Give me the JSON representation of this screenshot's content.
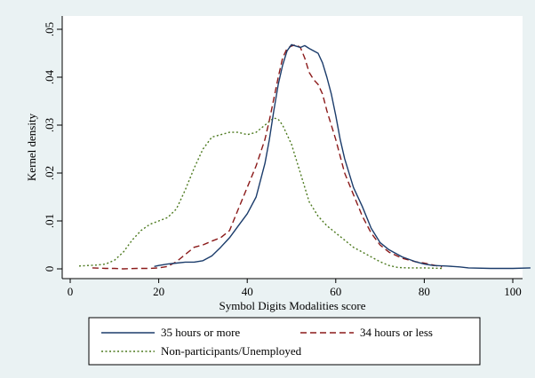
{
  "chart_data": {
    "type": "line",
    "title": "",
    "xlabel": "Symbol Digits Modalities score",
    "ylabel": "Kernel density",
    "xlim": [
      0,
      105
    ],
    "ylim": [
      -0.0015,
      0.0515
    ],
    "x_ticks": [
      0,
      20,
      40,
      60,
      80,
      100
    ],
    "x_tick_labels": [
      "0",
      "20",
      "40",
      "60",
      "80",
      "100"
    ],
    "y_ticks": [
      0,
      0.01,
      0.02,
      0.03,
      0.04,
      0.05
    ],
    "y_tick_labels": [
      "0",
      ".01",
      ".02",
      ".03",
      ".04",
      ".05"
    ],
    "grid": false,
    "legend_position": "bottom",
    "series": [
      {
        "name": "35 hours or more",
        "color": "#1b3c6b",
        "style": "solid",
        "points": [
          [
            19,
            0.0005
          ],
          [
            20,
            0.0007
          ],
          [
            22,
            0.001
          ],
          [
            24,
            0.0012
          ],
          [
            26,
            0.0014
          ],
          [
            28,
            0.0014
          ],
          [
            30,
            0.0017
          ],
          [
            32,
            0.0027
          ],
          [
            34,
            0.0045
          ],
          [
            36,
            0.0065
          ],
          [
            38,
            0.009
          ],
          [
            40,
            0.0115
          ],
          [
            42,
            0.015
          ],
          [
            44,
            0.022
          ],
          [
            45,
            0.027
          ],
          [
            46,
            0.033
          ],
          [
            47,
            0.0385
          ],
          [
            48,
            0.0425
          ],
          [
            49,
            0.0455
          ],
          [
            50,
            0.0468
          ],
          [
            51,
            0.0465
          ],
          [
            52,
            0.0462
          ],
          [
            53,
            0.0466
          ],
          [
            54,
            0.046
          ],
          [
            56,
            0.045
          ],
          [
            57,
            0.043
          ],
          [
            58,
            0.04
          ],
          [
            59,
            0.0365
          ],
          [
            60,
            0.032
          ],
          [
            61,
            0.027
          ],
          [
            62,
            0.023
          ],
          [
            64,
            0.017
          ],
          [
            66,
            0.013
          ],
          [
            68,
            0.0085
          ],
          [
            70,
            0.0055
          ],
          [
            72,
            0.004
          ],
          [
            75,
            0.0025
          ],
          [
            78,
            0.0015
          ],
          [
            80,
            0.001
          ],
          [
            82,
            0.0007
          ],
          [
            85,
            0.0006
          ],
          [
            88,
            0.0004
          ],
          [
            90,
            0.0002
          ],
          [
            95,
            0.0001
          ],
          [
            100,
            0.0001
          ],
          [
            104,
            0.0002
          ]
        ]
      },
      {
        "name": "34 hours or less",
        "color": "#8b1a1a",
        "style": "dashed",
        "points": [
          [
            5,
            0.0002
          ],
          [
            8,
            0.0001
          ],
          [
            10,
            0.0001
          ],
          [
            12,
            0.0
          ],
          [
            15,
            0.0001
          ],
          [
            18,
            0.0001
          ],
          [
            20,
            0.0002
          ],
          [
            22,
            0.0005
          ],
          [
            24,
            0.0015
          ],
          [
            26,
            0.003
          ],
          [
            28,
            0.0045
          ],
          [
            30,
            0.005
          ],
          [
            32,
            0.0058
          ],
          [
            34,
            0.0065
          ],
          [
            36,
            0.008
          ],
          [
            38,
            0.0125
          ],
          [
            40,
            0.017
          ],
          [
            42,
            0.0215
          ],
          [
            44,
            0.027
          ],
          [
            45,
            0.031
          ],
          [
            46,
            0.0355
          ],
          [
            47,
            0.04
          ],
          [
            48,
            0.044
          ],
          [
            49,
            0.046
          ],
          [
            50,
            0.0465
          ],
          [
            51,
            0.0468
          ],
          [
            52,
            0.0462
          ],
          [
            53,
            0.044
          ],
          [
            54,
            0.041
          ],
          [
            55,
            0.0395
          ],
          [
            56,
            0.0385
          ],
          [
            57,
            0.0365
          ],
          [
            58,
            0.033
          ],
          [
            59,
            0.03
          ],
          [
            60,
            0.027
          ],
          [
            62,
            0.02
          ],
          [
            64,
            0.0155
          ],
          [
            66,
            0.011
          ],
          [
            68,
            0.0075
          ],
          [
            70,
            0.005
          ],
          [
            72,
            0.0035
          ],
          [
            75,
            0.0022
          ],
          [
            78,
            0.0015
          ],
          [
            80,
            0.0012
          ],
          [
            82,
            0.0008
          ],
          [
            84,
            0.0004
          ]
        ]
      },
      {
        "name": "Non-participants/Unemployed",
        "color": "#4d7a1f",
        "style": "dotted",
        "points": [
          [
            2,
            0.0006
          ],
          [
            4,
            0.0007
          ],
          [
            6,
            0.0008
          ],
          [
            8,
            0.001
          ],
          [
            10,
            0.0018
          ],
          [
            12,
            0.0035
          ],
          [
            14,
            0.006
          ],
          [
            16,
            0.008
          ],
          [
            18,
            0.0093
          ],
          [
            20,
            0.01
          ],
          [
            22,
            0.0107
          ],
          [
            24,
            0.0125
          ],
          [
            26,
            0.0165
          ],
          [
            28,
            0.021
          ],
          [
            30,
            0.025
          ],
          [
            32,
            0.0275
          ],
          [
            34,
            0.028
          ],
          [
            36,
            0.0285
          ],
          [
            38,
            0.0285
          ],
          [
            40,
            0.028
          ],
          [
            42,
            0.0285
          ],
          [
            44,
            0.03
          ],
          [
            46,
            0.0315
          ],
          [
            47,
            0.0312
          ],
          [
            48,
            0.03
          ],
          [
            50,
            0.026
          ],
          [
            52,
            0.02
          ],
          [
            54,
            0.014
          ],
          [
            56,
            0.011
          ],
          [
            58,
            0.009
          ],
          [
            60,
            0.0075
          ],
          [
            62,
            0.006
          ],
          [
            64,
            0.0045
          ],
          [
            66,
            0.0035
          ],
          [
            68,
            0.0025
          ],
          [
            70,
            0.0015
          ],
          [
            72,
            0.0007
          ],
          [
            74,
            0.0003
          ],
          [
            76,
            0.0002
          ],
          [
            80,
            0.0002
          ],
          [
            84,
            0.0001
          ]
        ]
      }
    ]
  }
}
